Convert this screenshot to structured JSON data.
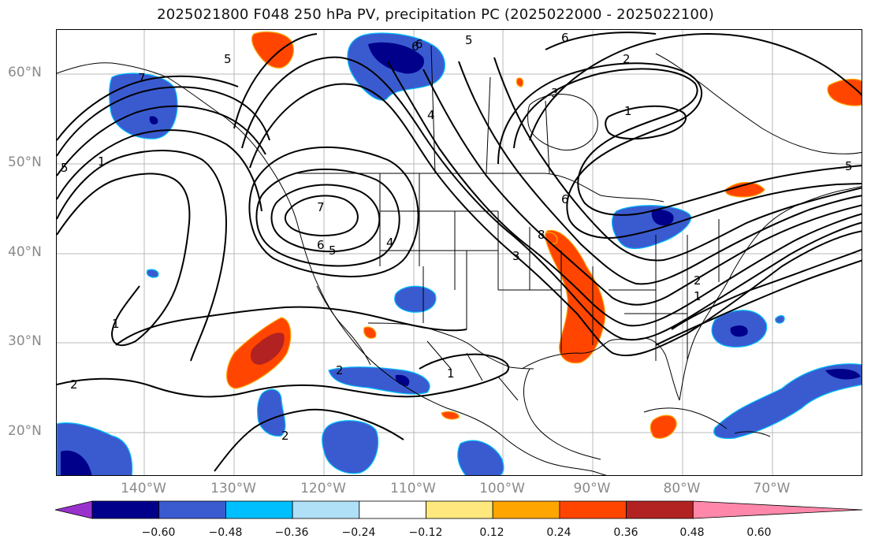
{
  "title": "2025021800 F048 250 hPa PV, precipitation PC (2025022000 - 2025022100)",
  "lat_labels": [
    "60°N",
    "50°N",
    "40°N",
    "30°N",
    "20°N"
  ],
  "lon_labels": [
    "140°W",
    "130°W",
    "120°W",
    "110°W",
    "100°W",
    "90°W",
    "80°W",
    "70°W"
  ],
  "contour_labels": [
    "5",
    "6",
    "6",
    "5",
    "4",
    "7",
    "6",
    "5",
    "4",
    "3",
    "5",
    "1",
    "7",
    "2",
    "1",
    "2",
    "1",
    "2",
    "5",
    "3",
    "8",
    "6",
    "1",
    "2",
    "1",
    "2",
    "6"
  ],
  "colorbar": {
    "ticks": [
      "−0.60",
      "−0.48",
      "−0.36",
      "−0.24",
      "−0.12",
      "0.12",
      "0.24",
      "0.36",
      "0.48",
      "0.60"
    ],
    "colors": [
      "#9932cc",
      "#00008b",
      "#3a5bd0",
      "#00bfff",
      "#b0e0f8",
      "#ffffff",
      "#ffe97f",
      "#ffa500",
      "#ff4500",
      "#b22222",
      "#ff88aa"
    ]
  },
  "colors": {
    "neg_dark": "#00008b",
    "neg_mid": "#3a5bd0",
    "neg_light": "#00bfff",
    "pos_mid": "#ffa500",
    "pos_strong": "#ff4500",
    "pos_dark": "#b22222"
  }
}
